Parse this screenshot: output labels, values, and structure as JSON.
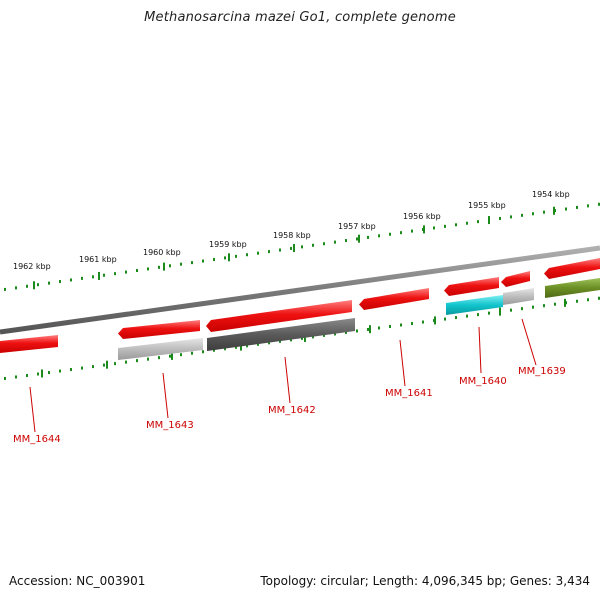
{
  "title": "Methanosarcina mazei Go1, complete genome",
  "footer": {
    "accession": "Accession: NC_003901",
    "summary": "Topology: circular; Length: 4,096,345 bp; Genes: 3,434"
  },
  "colors": {
    "forward_gene": "#ee1111",
    "reverse_gray_light": "#bbbbbb",
    "reverse_gray_dark": "#5a5a5a",
    "cyan_gene": "#11c4cc",
    "olive_gene": "#6b8e23",
    "backbone": "#7a7a7a",
    "tick": "#1a8a1a",
    "label": "#cc0000"
  },
  "ticks": [
    {
      "label": "1962 kbp"
    },
    {
      "label": "1961 kbp"
    },
    {
      "label": "1960 kbp"
    },
    {
      "label": "1959 kbp"
    },
    {
      "label": "1958 kbp"
    },
    {
      "label": "1957 kbp"
    },
    {
      "label": "1956 kbp"
    },
    {
      "label": "1955 kbp"
    },
    {
      "label": "1954 kbp"
    }
  ],
  "genes": [
    {
      "label": "MM_1644"
    },
    {
      "label": "MM_1643"
    },
    {
      "label": "MM_1642"
    },
    {
      "label": "MM_1641"
    },
    {
      "label": "MM_1640"
    },
    {
      "label": "MM_1639"
    }
  ]
}
